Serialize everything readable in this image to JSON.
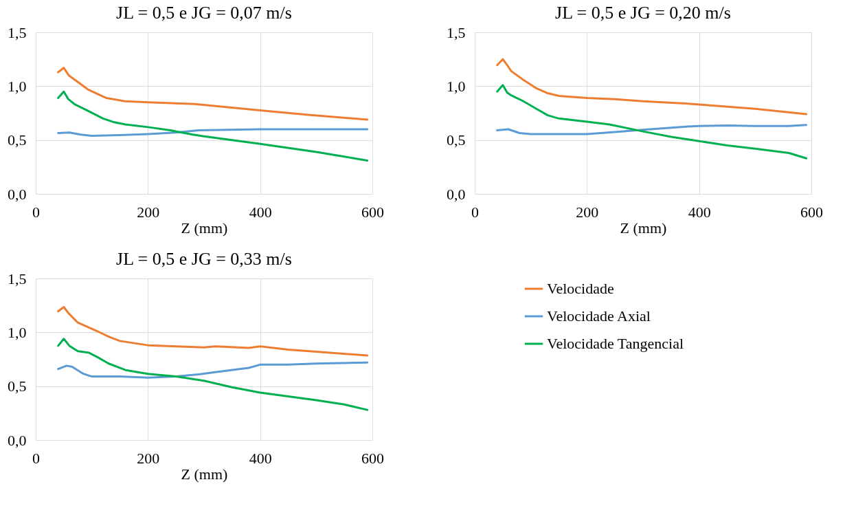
{
  "chart_data": [
    {
      "type": "line",
      "title": "JL = 0,5 e JG = 0,07 m/s",
      "xlabel": "Z (mm)",
      "xlim": [
        0,
        600
      ],
      "xticks": [
        0,
        200,
        400,
        600
      ],
      "ylim": [
        0,
        1.5
      ],
      "yticks": [
        {
          "value": 0,
          "label": "0,0"
        },
        {
          "value": 0.5,
          "label": "0,5"
        },
        {
          "value": 1.0,
          "label": "1,0"
        },
        {
          "value": 1.5,
          "label": "1,5"
        }
      ],
      "grid": true,
      "line_style": "solid",
      "marker": "none",
      "series": [
        {
          "color": "#ed7d31",
          "x": [
            40,
            50,
            59,
            93,
            126,
            159,
            200,
            283,
            400,
            482,
            591
          ],
          "values": [
            1.13,
            1.17,
            1.1,
            0.97,
            0.89,
            0.86,
            0.85,
            0.835,
            0.775,
            0.735,
            0.69
          ]
        },
        {
          "color": "#5b9bd5",
          "x": [
            40,
            60,
            80,
            100,
            150,
            200,
            250,
            290,
            400,
            500,
            591
          ],
          "values": [
            0.565,
            0.57,
            0.55,
            0.54,
            0.545,
            0.555,
            0.57,
            0.59,
            0.6,
            0.6,
            0.6
          ]
        },
        {
          "color": "#00b050",
          "x": [
            40,
            50,
            58,
            70,
            90,
            120,
            140,
            160,
            200,
            240,
            280,
            300,
            400,
            500,
            591
          ],
          "values": [
            0.89,
            0.95,
            0.88,
            0.83,
            0.78,
            0.7,
            0.665,
            0.645,
            0.62,
            0.59,
            0.55,
            0.535,
            0.465,
            0.39,
            0.31
          ]
        }
      ]
    },
    {
      "type": "line",
      "title": "JL = 0,5 e JG = 0,20 m/s",
      "xlabel": "Z (mm)",
      "xlim": [
        0,
        600
      ],
      "xticks": [
        0,
        200,
        400,
        600
      ],
      "ylim": [
        0,
        1.5
      ],
      "yticks": [
        {
          "value": 0,
          "label": "0,0"
        },
        {
          "value": 0.5,
          "label": "0,5"
        },
        {
          "value": 1.0,
          "label": "1,0"
        },
        {
          "value": 1.5,
          "label": "1,5"
        }
      ],
      "grid": true,
      "line_style": "solid",
      "marker": "none",
      "series": [
        {
          "color": "#ed7d31",
          "x": [
            40,
            50,
            58,
            65,
            85,
            110,
            130,
            150,
            200,
            250,
            300,
            375,
            400,
            500,
            591
          ],
          "values": [
            1.195,
            1.25,
            1.195,
            1.14,
            1.065,
            0.98,
            0.935,
            0.91,
            0.89,
            0.88,
            0.86,
            0.84,
            0.83,
            0.79,
            0.74
          ]
        },
        {
          "color": "#5b9bd5",
          "x": [
            40,
            60,
            80,
            100,
            150,
            200,
            250,
            300,
            380,
            400,
            450,
            500,
            560,
            591
          ],
          "values": [
            0.59,
            0.6,
            0.565,
            0.555,
            0.555,
            0.555,
            0.575,
            0.595,
            0.625,
            0.63,
            0.635,
            0.63,
            0.63,
            0.64
          ]
        },
        {
          "color": "#00b050",
          "x": [
            40,
            50,
            58,
            65,
            85,
            110,
            130,
            150,
            200,
            240,
            300,
            350,
            400,
            450,
            500,
            560,
            591
          ],
          "values": [
            0.95,
            1.01,
            0.94,
            0.915,
            0.865,
            0.79,
            0.73,
            0.7,
            0.67,
            0.645,
            0.58,
            0.53,
            0.49,
            0.45,
            0.42,
            0.38,
            0.33
          ]
        }
      ]
    },
    {
      "type": "line",
      "title": "JL = 0,5 e JG = 0,33 m/s",
      "xlabel": "Z (mm)",
      "xlim": [
        0,
        600
      ],
      "xticks": [
        0,
        200,
        400,
        600
      ],
      "ylim": [
        0,
        1.5
      ],
      "yticks": [
        {
          "value": 0,
          "label": "0,0"
        },
        {
          "value": 0.5,
          "label": "0,5"
        },
        {
          "value": 1.0,
          "label": "1,0"
        },
        {
          "value": 1.5,
          "label": "1,5"
        }
      ],
      "grid": true,
      "legend": "right",
      "line_style": "solid",
      "marker": "none",
      "series": [
        {
          "name": "Velocidade",
          "color": "#ed7d31",
          "x": [
            40,
            50,
            58,
            75,
            95,
            110,
            130,
            150,
            200,
            250,
            300,
            320,
            380,
            400,
            450,
            500,
            591
          ],
          "values": [
            1.195,
            1.235,
            1.18,
            1.09,
            1.045,
            1.01,
            0.96,
            0.92,
            0.88,
            0.87,
            0.86,
            0.87,
            0.855,
            0.87,
            0.84,
            0.82,
            0.785
          ]
        },
        {
          "name": "Velocidade Axial",
          "color": "#5b9bd5",
          "x": [
            40,
            55,
            65,
            85,
            100,
            150,
            200,
            250,
            290,
            320,
            380,
            400,
            450,
            500,
            591
          ],
          "values": [
            0.66,
            0.69,
            0.68,
            0.615,
            0.59,
            0.59,
            0.58,
            0.59,
            0.61,
            0.63,
            0.67,
            0.7,
            0.7,
            0.71,
            0.72
          ]
        },
        {
          "name": "Velocidade Tangencial",
          "color": "#00b050",
          "x": [
            40,
            50,
            60,
            75,
            95,
            110,
            130,
            160,
            200,
            250,
            300,
            350,
            400,
            450,
            500,
            550,
            591
          ],
          "values": [
            0.875,
            0.94,
            0.875,
            0.825,
            0.81,
            0.77,
            0.71,
            0.65,
            0.615,
            0.59,
            0.55,
            0.49,
            0.44,
            0.405,
            0.37,
            0.33,
            0.28
          ]
        }
      ]
    }
  ]
}
